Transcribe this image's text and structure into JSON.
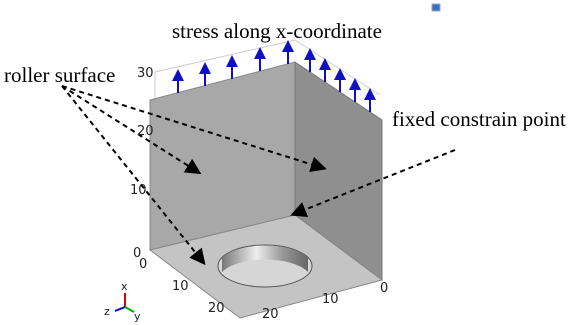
{
  "title": "stress along x-coordinate",
  "labels": {
    "roller": "roller surface",
    "fixed": "fixed constrain point"
  },
  "axes": {
    "vertical_ticks": [
      30,
      20,
      10,
      0
    ],
    "left_ticks": [
      0,
      10,
      20
    ],
    "right_ticks": [
      20,
      10,
      0
    ],
    "triad": {
      "x": "x",
      "y": "y",
      "z": "z"
    }
  }
}
